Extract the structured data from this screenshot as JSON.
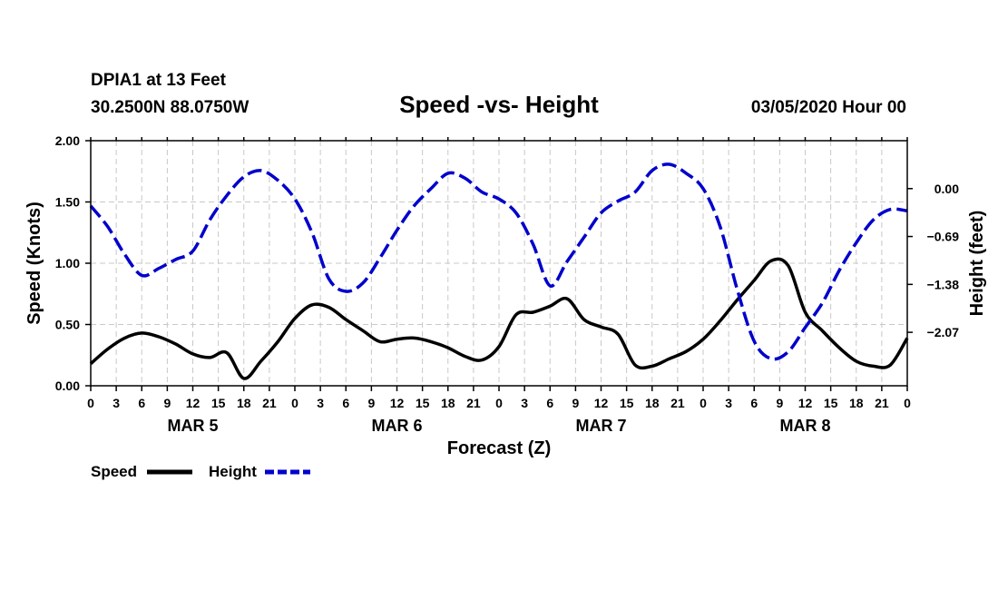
{
  "header": {
    "station": "DPIA1 at 13 Feet",
    "coords": "30.2500N 88.0750W",
    "run": "03/05/2020 Hour 00"
  },
  "chart_data": {
    "type": "line",
    "title": "Speed -vs- Height",
    "xlabel": "Forecast (Z)",
    "ylabel_left": "Speed (Knots)",
    "ylabel_right": "Height (feet)",
    "x_range_hours": [
      0,
      96
    ],
    "x_tick_labels": [
      "0",
      "3",
      "6",
      "9",
      "12",
      "15",
      "18",
      "21",
      "0",
      "3",
      "6",
      "9",
      "12",
      "15",
      "18",
      "21",
      "0",
      "3",
      "6",
      "9",
      "12",
      "15",
      "18",
      "21",
      "0",
      "3",
      "6",
      "9",
      "12",
      "15",
      "18",
      "21",
      "0"
    ],
    "day_labels": [
      {
        "label": "MAR 5",
        "center_hour": 12
      },
      {
        "label": "MAR 6",
        "center_hour": 36
      },
      {
        "label": "MAR 7",
        "center_hour": 60
      },
      {
        "label": "MAR 8",
        "center_hour": 84
      }
    ],
    "left_axis": {
      "ylim": [
        0,
        2
      ],
      "ticks": [
        0,
        0.5,
        1.0,
        1.5,
        2.0
      ],
      "tick_labels": [
        "0.00",
        "0.50",
        "1.00",
        "1.50",
        "2.00"
      ]
    },
    "right_axis": {
      "ylim": [
        -2.84,
        0.69
      ],
      "ticks": [
        0,
        -0.69,
        -1.38,
        -2.07
      ],
      "tick_labels": [
        "0.00",
        "−0.69",
        "−1.38",
        "−2.07"
      ]
    },
    "grid": true,
    "series": [
      {
        "name": "Speed",
        "axis": "left",
        "color": "#000000",
        "style": "solid",
        "x": [
          0,
          2,
          4,
          6,
          8,
          10,
          12,
          14,
          16,
          18,
          20,
          22,
          24,
          26,
          28,
          30,
          32,
          34,
          36,
          38,
          40,
          42,
          44,
          46,
          48,
          50,
          52,
          54,
          56,
          58,
          60,
          62,
          64,
          66,
          68,
          70,
          72,
          74,
          76,
          78,
          80,
          82,
          84,
          86,
          88,
          90,
          92,
          94,
          96
        ],
        "y": [
          0.18,
          0.3,
          0.39,
          0.43,
          0.4,
          0.34,
          0.26,
          0.23,
          0.27,
          0.06,
          0.2,
          0.36,
          0.55,
          0.66,
          0.64,
          0.54,
          0.45,
          0.36,
          0.38,
          0.39,
          0.36,
          0.31,
          0.24,
          0.21,
          0.32,
          0.58,
          0.6,
          0.65,
          0.71,
          0.54,
          0.48,
          0.42,
          0.17,
          0.16,
          0.22,
          0.28,
          0.38,
          0.53,
          0.7,
          0.86,
          1.02,
          0.98,
          0.6,
          0.45,
          0.31,
          0.2,
          0.16,
          0.17,
          0.39
        ]
      },
      {
        "name": "Height",
        "axis": "right",
        "color": "#0000cc",
        "style": "dashed",
        "x": [
          0,
          2,
          4,
          6,
          8,
          10,
          12,
          14,
          16,
          18,
          20,
          22,
          24,
          26,
          28,
          30,
          32,
          34,
          36,
          38,
          40,
          42,
          44,
          46,
          48,
          50,
          52,
          54,
          56,
          58,
          60,
          62,
          64,
          66,
          68,
          70,
          72,
          74,
          76,
          78,
          80,
          82,
          84,
          86,
          88,
          90,
          92,
          94,
          96
        ],
        "y": [
          -0.25,
          -0.55,
          -0.95,
          -1.25,
          -1.15,
          -1.02,
          -0.9,
          -0.45,
          -0.1,
          0.17,
          0.26,
          0.12,
          -0.15,
          -0.63,
          -1.3,
          -1.48,
          -1.36,
          -1.0,
          -0.6,
          -0.25,
          0.0,
          0.22,
          0.15,
          -0.05,
          -0.15,
          -0.35,
          -0.8,
          -1.4,
          -1.05,
          -0.7,
          -0.35,
          -0.18,
          -0.05,
          0.26,
          0.35,
          0.22,
          0.0,
          -0.55,
          -1.45,
          -2.2,
          -2.45,
          -2.35,
          -2.0,
          -1.65,
          -1.18,
          -0.78,
          -0.45,
          -0.3,
          -0.32
        ]
      }
    ],
    "legend": [
      {
        "label": "Speed",
        "color": "#000000",
        "style": "solid"
      },
      {
        "label": "Height",
        "color": "#0000cc",
        "style": "dashed"
      }
    ]
  }
}
